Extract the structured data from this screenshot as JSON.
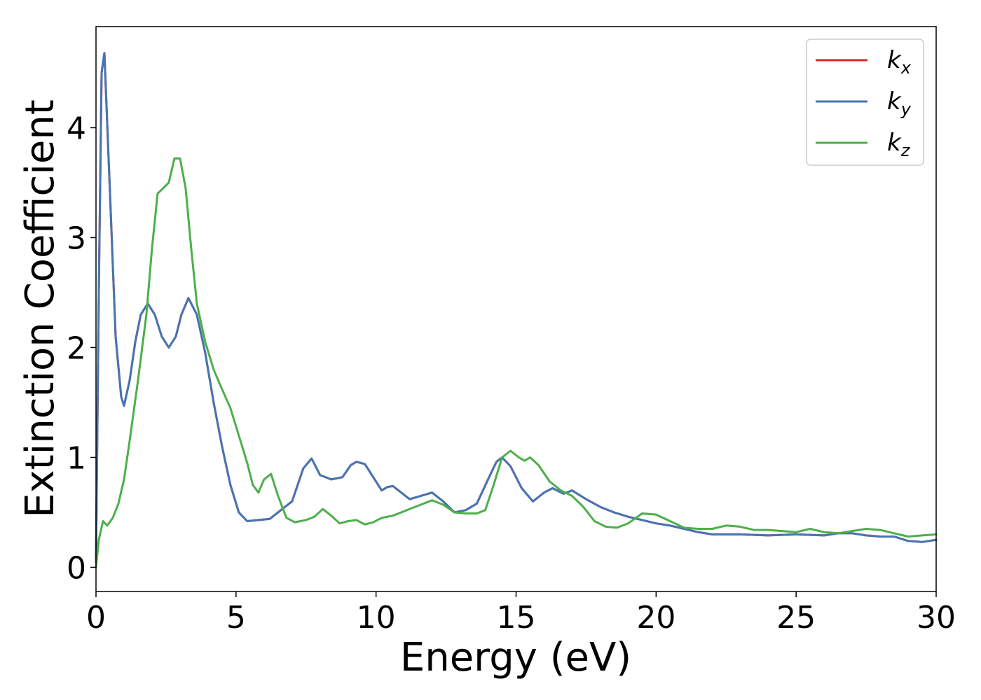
{
  "chart_data": {
    "type": "line",
    "title": "",
    "xlabel": "Energy (eV)",
    "ylabel": "Extinction Coefficient",
    "xlim": [
      0,
      30
    ],
    "ylim": [
      -0.22,
      4.92
    ],
    "xticks": [
      0,
      5,
      10,
      15,
      20,
      25,
      30
    ],
    "yticks": [
      0,
      1,
      2,
      3,
      4
    ],
    "grid": false,
    "legend_position": "top-right",
    "series": [
      {
        "name": "k",
        "subscript": "x",
        "color": "#d62728",
        "x": [
          0,
          0.1,
          0.2,
          0.3,
          0.5,
          0.7,
          0.9,
          1.0,
          1.2,
          1.4,
          1.6,
          1.85,
          2.1,
          2.35,
          2.6,
          2.85,
          3.05,
          3.3,
          3.6,
          3.9,
          4.2,
          4.5,
          4.8,
          5.1,
          5.4,
          5.8,
          6.2,
          6.6,
          7.0,
          7.4,
          7.7,
          8.0,
          8.4,
          8.8,
          9.1,
          9.3,
          9.6,
          9.9,
          10.2,
          10.4,
          10.6,
          10.9,
          11.2,
          11.6,
          12.0,
          12.4,
          12.8,
          13.2,
          13.6,
          14.0,
          14.3,
          14.5,
          14.8,
          15.2,
          15.6,
          16.0,
          16.3,
          16.7,
          17.0,
          17.5,
          18.0,
          18.5,
          19.0,
          19.5,
          20.0,
          20.5,
          21.0,
          21.5,
          22.0,
          23.0,
          24.0,
          25.0,
          26.0,
          26.5,
          27.0,
          27.5,
          28.0,
          28.5,
          29.0,
          29.5,
          30.0
        ],
        "y": [
          0.05,
          2.5,
          4.5,
          4.68,
          3.4,
          2.1,
          1.55,
          1.47,
          1.7,
          2.05,
          2.3,
          2.4,
          2.3,
          2.1,
          2.0,
          2.1,
          2.3,
          2.45,
          2.3,
          1.95,
          1.5,
          1.1,
          0.75,
          0.5,
          0.42,
          0.43,
          0.44,
          0.52,
          0.6,
          0.9,
          0.99,
          0.84,
          0.8,
          0.82,
          0.93,
          0.96,
          0.94,
          0.82,
          0.7,
          0.73,
          0.74,
          0.68,
          0.62,
          0.65,
          0.68,
          0.6,
          0.5,
          0.52,
          0.58,
          0.8,
          0.96,
          1.0,
          0.92,
          0.72,
          0.6,
          0.68,
          0.72,
          0.67,
          0.7,
          0.62,
          0.55,
          0.5,
          0.46,
          0.43,
          0.4,
          0.38,
          0.35,
          0.32,
          0.3,
          0.3,
          0.29,
          0.3,
          0.29,
          0.31,
          0.31,
          0.29,
          0.28,
          0.28,
          0.24,
          0.23,
          0.25
        ]
      },
      {
        "name": "k",
        "subscript": "y",
        "color": "#4575b4",
        "x": [
          0,
          0.1,
          0.2,
          0.3,
          0.5,
          0.7,
          0.9,
          1.0,
          1.2,
          1.4,
          1.6,
          1.85,
          2.1,
          2.35,
          2.6,
          2.85,
          3.05,
          3.3,
          3.6,
          3.9,
          4.2,
          4.5,
          4.8,
          5.1,
          5.4,
          5.8,
          6.2,
          6.6,
          7.0,
          7.4,
          7.7,
          8.0,
          8.4,
          8.8,
          9.1,
          9.3,
          9.6,
          9.9,
          10.2,
          10.4,
          10.6,
          10.9,
          11.2,
          11.6,
          12.0,
          12.4,
          12.8,
          13.2,
          13.6,
          14.0,
          14.3,
          14.5,
          14.8,
          15.2,
          15.6,
          16.0,
          16.3,
          16.7,
          17.0,
          17.5,
          18.0,
          18.5,
          19.0,
          19.5,
          20.0,
          20.5,
          21.0,
          21.5,
          22.0,
          23.0,
          24.0,
          25.0,
          26.0,
          26.5,
          27.0,
          27.5,
          28.0,
          28.5,
          29.0,
          29.5,
          30.0
        ],
        "y": [
          0.05,
          2.5,
          4.5,
          4.68,
          3.4,
          2.1,
          1.55,
          1.47,
          1.7,
          2.05,
          2.3,
          2.4,
          2.3,
          2.1,
          2.0,
          2.1,
          2.3,
          2.45,
          2.3,
          1.95,
          1.5,
          1.1,
          0.75,
          0.5,
          0.42,
          0.43,
          0.44,
          0.52,
          0.6,
          0.9,
          0.99,
          0.84,
          0.8,
          0.82,
          0.93,
          0.96,
          0.94,
          0.82,
          0.7,
          0.73,
          0.74,
          0.68,
          0.62,
          0.65,
          0.68,
          0.6,
          0.5,
          0.52,
          0.58,
          0.8,
          0.96,
          1.0,
          0.92,
          0.72,
          0.6,
          0.68,
          0.72,
          0.67,
          0.7,
          0.62,
          0.55,
          0.5,
          0.46,
          0.43,
          0.4,
          0.38,
          0.35,
          0.32,
          0.3,
          0.3,
          0.29,
          0.3,
          0.29,
          0.31,
          0.31,
          0.29,
          0.28,
          0.28,
          0.24,
          0.23,
          0.25
        ]
      },
      {
        "name": "k",
        "subscript": "z",
        "color": "#4daf4a",
        "x": [
          0,
          0.1,
          0.25,
          0.4,
          0.6,
          0.8,
          1.0,
          1.2,
          1.5,
          1.8,
          2.0,
          2.2,
          2.4,
          2.6,
          2.8,
          3.0,
          3.2,
          3.4,
          3.6,
          3.9,
          4.2,
          4.5,
          4.8,
          5.1,
          5.4,
          5.6,
          5.8,
          6.0,
          6.25,
          6.5,
          6.8,
          7.1,
          7.5,
          7.8,
          8.1,
          8.4,
          8.7,
          9.0,
          9.3,
          9.6,
          9.9,
          10.2,
          10.6,
          11.0,
          11.5,
          12.0,
          12.4,
          12.8,
          13.2,
          13.6,
          13.9,
          14.2,
          14.5,
          14.8,
          15.1,
          15.3,
          15.5,
          15.8,
          16.2,
          16.6,
          17.0,
          17.4,
          17.8,
          18.2,
          18.6,
          19.0,
          19.5,
          20.0,
          20.5,
          21.0,
          21.5,
          22.0,
          22.5,
          23.0,
          23.5,
          24.0,
          24.5,
          25.0,
          25.5,
          26.0,
          26.5,
          27.0,
          27.5,
          28.0,
          28.5,
          29.0,
          29.5,
          30.0
        ],
        "y": [
          0.0,
          0.25,
          0.42,
          0.38,
          0.45,
          0.58,
          0.8,
          1.15,
          1.7,
          2.3,
          2.9,
          3.4,
          3.45,
          3.5,
          3.72,
          3.72,
          3.45,
          2.9,
          2.4,
          2.05,
          1.8,
          1.62,
          1.45,
          1.2,
          0.95,
          0.75,
          0.68,
          0.8,
          0.85,
          0.65,
          0.45,
          0.41,
          0.43,
          0.46,
          0.53,
          0.47,
          0.4,
          0.42,
          0.43,
          0.39,
          0.41,
          0.45,
          0.47,
          0.51,
          0.56,
          0.61,
          0.57,
          0.5,
          0.49,
          0.49,
          0.52,
          0.75,
          1.0,
          1.06,
          1.0,
          0.97,
          1.0,
          0.93,
          0.78,
          0.7,
          0.65,
          0.55,
          0.42,
          0.37,
          0.36,
          0.4,
          0.49,
          0.48,
          0.42,
          0.36,
          0.35,
          0.35,
          0.38,
          0.37,
          0.34,
          0.34,
          0.33,
          0.32,
          0.35,
          0.32,
          0.31,
          0.33,
          0.35,
          0.34,
          0.31,
          0.28,
          0.29,
          0.3
        ]
      }
    ]
  }
}
